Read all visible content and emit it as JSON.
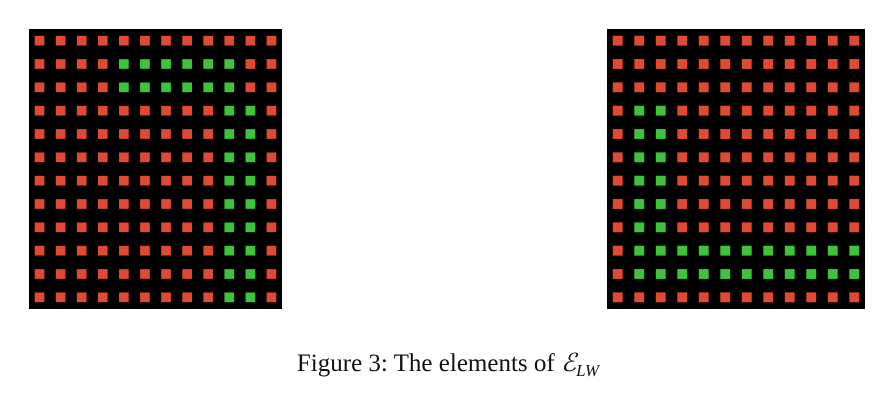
{
  "figure": {
    "caption_prefix": "Figure 3:  The elements of ",
    "caption_symbol": "ℰ",
    "caption_subscript": "LW"
  },
  "colors": {
    "background": "#000000",
    "off_cell": "#e04a32",
    "on_cell": "#3cc43a"
  },
  "grids": [
    {
      "name": "left-grid",
      "rows": [
        "000000000000",
        "000011111100",
        "000011111100",
        "000000000110",
        "000000000110",
        "000000000110",
        "000000000110",
        "000000000110",
        "000000000110",
        "000000000110",
        "000000000110",
        "000000000110"
      ]
    },
    {
      "name": "right-grid",
      "rows": [
        "000000000000",
        "000000000000",
        "000000000000",
        "011000000000",
        "011000000000",
        "011000000000",
        "011000000000",
        "011000000000",
        "011000000000",
        "011111111111",
        "011111111111",
        "000000000000"
      ]
    }
  ]
}
